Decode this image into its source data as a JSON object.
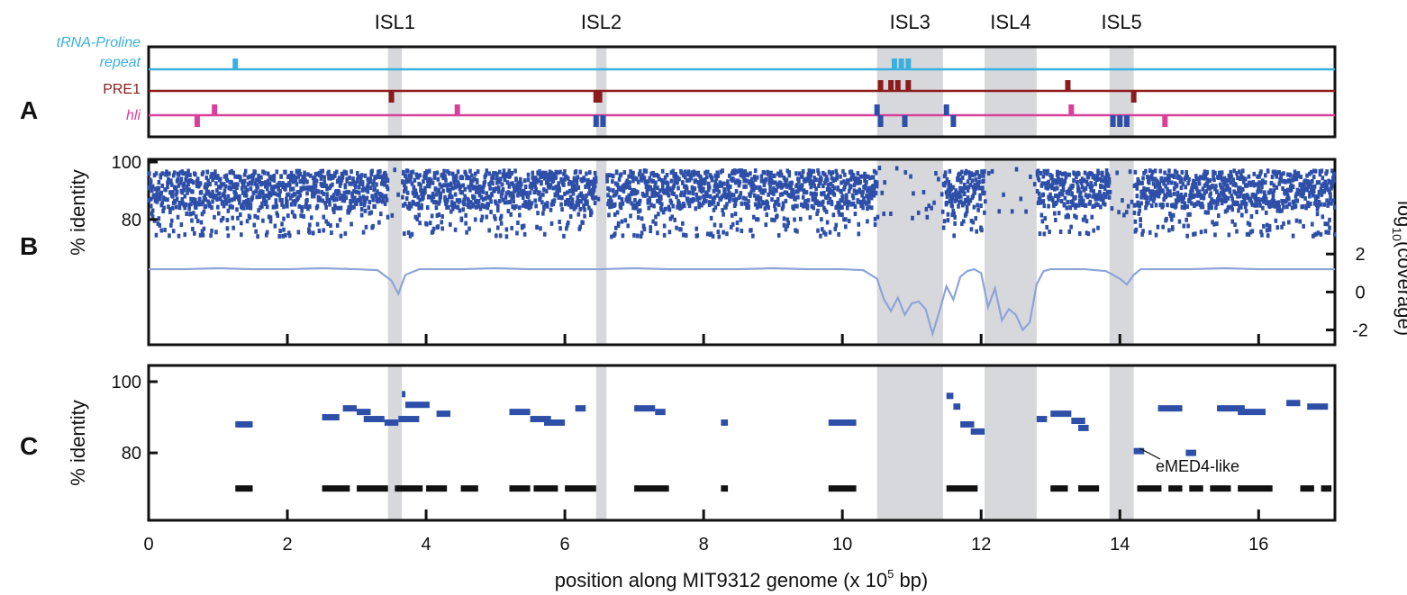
{
  "chart_data": [
    {
      "panel": "A",
      "type": "track",
      "xlim": [
        0,
        17.1
      ],
      "tracks": [
        {
          "name": "tRNA-Proline repeat",
          "color": "#3ab0e0",
          "up": [
            1.25,
            10.75,
            10.85,
            10.95
          ],
          "down": []
        },
        {
          "name": "PRE1",
          "color": "#8c1c1c",
          "up": [
            10.55,
            10.7,
            10.8,
            10.95,
            13.25
          ],
          "down": [
            3.5,
            6.45,
            6.5,
            14.2
          ]
        },
        {
          "name": "hli",
          "color": "#d8409a",
          "up": [
            0.95,
            4.45,
            13.3
          ],
          "down": [
            0.7,
            14.65
          ]
        },
        {
          "name": "hli-blue",
          "color": "#2e4fa8",
          "up": [
            10.5,
            11.5
          ],
          "down": [
            6.45,
            6.55,
            10.55,
            10.9,
            11.6,
            13.9,
            14.0,
            14.1
          ]
        }
      ]
    },
    {
      "panel": "B",
      "type": "scatter",
      "xlim": [
        0,
        17.1
      ],
      "ylim": [
        60,
        100
      ],
      "y_ticks": [
        80,
        100
      ],
      "ylabel": "% identity",
      "y2label": "log10(coverage)",
      "y2_ticks": [
        -2,
        0,
        2
      ],
      "y2lim": [
        -2.4,
        3.1
      ],
      "series": [
        {
          "name": "coverage",
          "x": [
            0,
            0.5,
            1.0,
            1.5,
            2.0,
            2.5,
            3.0,
            3.3,
            3.5,
            3.6,
            3.7,
            3.9,
            4.5,
            5.0,
            5.5,
            6.0,
            6.5,
            7.0,
            7.5,
            8.0,
            8.5,
            9.0,
            9.5,
            10.0,
            10.3,
            10.5,
            10.6,
            10.7,
            10.8,
            10.9,
            11.0,
            11.1,
            11.2,
            11.3,
            11.4,
            11.5,
            11.6,
            11.7,
            11.8,
            11.9,
            12.0,
            12.1,
            12.2,
            12.3,
            12.4,
            12.5,
            12.6,
            12.7,
            12.8,
            12.9,
            13.0,
            13.5,
            13.8,
            14.0,
            14.1,
            14.2,
            14.3,
            14.5,
            15.0,
            15.5,
            16.0,
            16.5,
            17.1
          ],
          "y": [
            1.2,
            1.2,
            1.25,
            1.2,
            1.2,
            1.25,
            1.2,
            1.15,
            0.6,
            -0.1,
            0.9,
            1.2,
            1.2,
            1.25,
            1.2,
            1.2,
            1.2,
            1.25,
            1.2,
            1.2,
            1.2,
            1.25,
            1.2,
            1.2,
            1.15,
            0.7,
            -0.4,
            -1.0,
            -0.3,
            -1.2,
            -0.6,
            -0.5,
            -0.9,
            -2.2,
            -1.0,
            0.3,
            -0.4,
            0.8,
            1.1,
            1.2,
            1.0,
            -0.8,
            0.2,
            -1.5,
            -0.9,
            -1.2,
            -2.0,
            -1.6,
            0.4,
            1.1,
            1.2,
            1.2,
            1.1,
            0.7,
            0.4,
            0.9,
            1.2,
            1.2,
            1.2,
            1.25,
            1.2,
            1.2,
            1.2
          ]
        }
      ]
    },
    {
      "panel": "C",
      "type": "scatter",
      "xlim": [
        0,
        17.1
      ],
      "ylim": [
        60,
        100
      ],
      "y_ticks": [
        80,
        100
      ],
      "ylabel": "% identity",
      "xlabel": "position along MIT9312 genome (x 10^5 bp)",
      "x_ticks": [
        0,
        2,
        4,
        6,
        8,
        10,
        12,
        14,
        16
      ],
      "series": [
        {
          "name": "segments",
          "color": "#2e4fa8",
          "segments": [
            [
              1.25,
              1.5,
              88
            ],
            [
              2.5,
              2.75,
              90
            ],
            [
              2.8,
              3.0,
              92.5
            ],
            [
              3.0,
              3.2,
              91.5
            ],
            [
              3.1,
              3.4,
              89.5
            ],
            [
              3.4,
              3.6,
              88.5
            ],
            [
              3.6,
              3.9,
              89.5
            ],
            [
              3.65,
              3.7,
              96.5
            ],
            [
              3.7,
              4.05,
              93.5
            ],
            [
              4.15,
              4.35,
              91
            ],
            [
              5.2,
              5.5,
              91.5
            ],
            [
              5.5,
              5.8,
              89.5
            ],
            [
              5.7,
              6.0,
              88.5
            ],
            [
              6.15,
              6.3,
              92.5
            ],
            [
              7.0,
              7.3,
              92.5
            ],
            [
              7.3,
              7.45,
              91.5
            ],
            [
              8.25,
              8.35,
              88.5
            ],
            [
              9.8,
              10.2,
              88.5
            ],
            [
              11.5,
              11.6,
              96
            ],
            [
              11.6,
              11.7,
              93
            ],
            [
              11.7,
              11.9,
              88
            ],
            [
              11.85,
              12.05,
              86
            ],
            [
              12.8,
              12.95,
              89.5
            ],
            [
              13.0,
              13.3,
              91
            ],
            [
              13.3,
              13.5,
              89
            ],
            [
              13.4,
              13.55,
              87
            ],
            [
              14.2,
              14.35,
              80.5
            ],
            [
              14.95,
              15.1,
              80
            ],
            [
              14.55,
              14.9,
              92.5
            ],
            [
              15.4,
              15.8,
              92.5
            ],
            [
              15.7,
              16.1,
              91.5
            ],
            [
              16.4,
              16.6,
              94
            ],
            [
              16.7,
              17.0,
              93
            ]
          ]
        },
        {
          "name": "baseline",
          "color": "#111111",
          "segments": [
            [
              1.25,
              1.5,
              70
            ],
            [
              2.5,
              2.9,
              70
            ],
            [
              3.0,
              3.45,
              70
            ],
            [
              3.55,
              3.95,
              70
            ],
            [
              4.0,
              4.3,
              70
            ],
            [
              4.5,
              4.75,
              70
            ],
            [
              5.2,
              5.5,
              70
            ],
            [
              5.55,
              5.9,
              70
            ],
            [
              6.0,
              6.45,
              70
            ],
            [
              7.0,
              7.5,
              70
            ],
            [
              8.25,
              8.35,
              70
            ],
            [
              9.8,
              10.2,
              70
            ],
            [
              11.5,
              11.95,
              70
            ],
            [
              13.0,
              13.25,
              70
            ],
            [
              13.4,
              13.7,
              70
            ],
            [
              14.25,
              14.6,
              70
            ],
            [
              14.7,
              14.9,
              70
            ],
            [
              15.0,
              15.2,
              70
            ],
            [
              15.3,
              15.6,
              70
            ],
            [
              15.7,
              16.2,
              70
            ],
            [
              16.6,
              16.8,
              70
            ],
            [
              16.9,
              17.05,
              70
            ]
          ]
        }
      ],
      "annotations": [
        {
          "text": "eMED4-like",
          "x": 14.3,
          "y": 80.5
        }
      ]
    }
  ],
  "islands": [
    {
      "label": "ISL1",
      "start": 3.45,
      "end": 3.65
    },
    {
      "label": "ISL2",
      "start": 6.45,
      "end": 6.6
    },
    {
      "label": "ISL3",
      "start": 10.5,
      "end": 11.45
    },
    {
      "label": "ISL4",
      "start": 12.05,
      "end": 12.8
    },
    {
      "label": "ISL5",
      "start": 13.85,
      "end": 14.2
    }
  ],
  "panel_labels": [
    "A",
    "B",
    "C"
  ],
  "track_labels": {
    "trna_line1": "tRNA-Proline",
    "trna_line2": "repeat",
    "pre1": "PRE1",
    "hli": "hli"
  },
  "axis_text": {
    "ylabel_b": "% identity",
    "ylabel_c": "% identity",
    "y2_main": "log",
    "y2_sub": "10",
    "y2_rest": "(coverage)",
    "xlabel_main": "position along MIT9312 genome (x 10",
    "xlabel_sup": "5",
    "xlabel_end": " bp)",
    "annot": "eMED4-like"
  },
  "y_tick_labels": {
    "b": [
      "100",
      "80"
    ],
    "c": [
      "100",
      "80"
    ],
    "b2": [
      "2",
      "0",
      "-2"
    ]
  },
  "x_tick_labels": [
    "0",
    "2",
    "4",
    "6",
    "8",
    "10",
    "12",
    "14",
    "16"
  ],
  "colors": {
    "blue": "#2e4fa8",
    "coverage": "#8ea4d8",
    "island": "#d7d8dc",
    "trna": "#3ab0e0",
    "pre1": "#8c1c1c",
    "hli": "#d8409a"
  }
}
